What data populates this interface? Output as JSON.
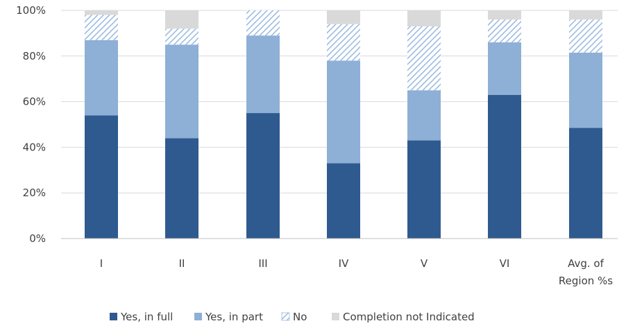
{
  "chart_data": {
    "type": "bar",
    "stacked": true,
    "title": "",
    "xlabel": "",
    "ylabel": "",
    "categories": [
      "I",
      "II",
      "III",
      "IV",
      "V",
      "VI",
      "Avg. of Region %s"
    ],
    "category_lines": [
      [
        "I"
      ],
      [
        "II"
      ],
      [
        "III"
      ],
      [
        "IV"
      ],
      [
        "V"
      ],
      [
        "VI"
      ],
      [
        "Avg. of",
        "Region %s"
      ]
    ],
    "series": [
      {
        "name": "Yes, in full",
        "values": [
          54,
          44,
          55,
          33,
          43,
          63,
          48.5
        ],
        "color": "#2e5a8f",
        "pattern": "solid"
      },
      {
        "name": "Yes, in part",
        "values": [
          33,
          41,
          34,
          45,
          22,
          23,
          33
        ],
        "color": "#8eafd6",
        "pattern": "solid"
      },
      {
        "name": "No",
        "values": [
          11,
          7,
          11,
          16,
          28,
          10,
          14.5
        ],
        "color": "#b5cbe6",
        "pattern": "hatch"
      },
      {
        "name": "Completion not Indicated",
        "values": [
          2,
          8,
          0,
          6,
          7,
          4,
          4
        ],
        "color": "#d9d9d9",
        "pattern": "solid"
      }
    ],
    "ylim": [
      0,
      100
    ],
    "yticks": [
      "0%",
      "20%",
      "40%",
      "60%",
      "80%",
      "100%"
    ],
    "ytick_values": [
      0,
      20,
      40,
      60,
      80,
      100
    ],
    "grid": true,
    "legend_position": "bottom"
  }
}
